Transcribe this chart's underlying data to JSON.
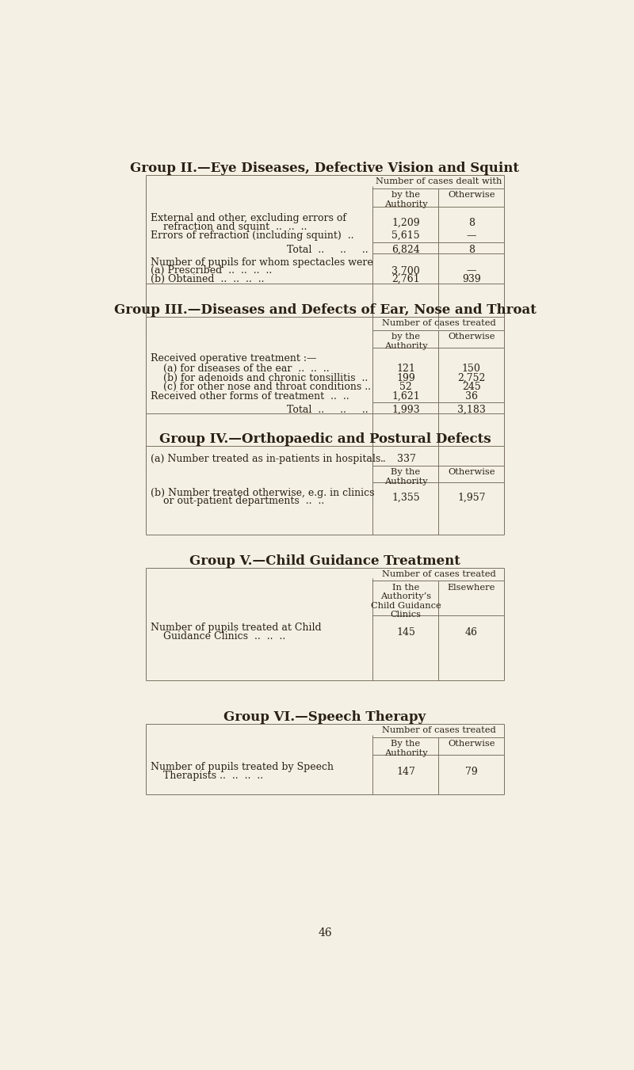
{
  "bg_color": "#f4f1e4",
  "text_color": "#2a2015",
  "line_color": "#7a7060",
  "group2": {
    "title": "Group II.—Eye Diseases, Defective Vision and Squint",
    "header_top": "Number of cases dealt with",
    "col1_header": "by the\nAuthority",
    "col2_header": "Otherwise",
    "row_ext1": "External and other, excluding errors of",
    "row_ext2": "    refraction and squint  ..  ..  ..",
    "row_ext_v1": "1,209",
    "row_ext_v2": "8",
    "row_err": "Errors of refraction (including squint)  ..",
    "row_err_v1": "5,615",
    "row_err_v2": "—",
    "total_v1": "6,824",
    "total_v2": "8",
    "spec_header": "Number of pupils for whom spectacles were",
    "spec_a": "(a) Prescribed  ..  ..  ..  ..",
    "spec_a_v1": "3,700",
    "spec_a_v2": "—",
    "spec_b": "(b) Obtained  ..  ..  ..  ..",
    "spec_b_v1": "2,761",
    "spec_b_v2": "939"
  },
  "group3": {
    "title": "Group III.—Diseases and Defects of Ear, Nose and Throat",
    "header_top": "Number of cases treated",
    "col1_header": "by the\nAuthority",
    "col2_header": "Otherwise",
    "row_op": "Received operative treatment :—",
    "row_a": "    (a) for diseases of the ear  ..  ..  ..",
    "row_a_v1": "121",
    "row_a_v2": "150",
    "row_b": "    (b) for adenoids and chronic tonsillitis  ..",
    "row_b_v1": "199",
    "row_b_v2": "2,752",
    "row_c": "    (c) for other nose and throat conditions ..",
    "row_c_v1": "52",
    "row_c_v2": "245",
    "row_other": "Received other forms of treatment  ..  ..",
    "row_other_v1": "1,621",
    "row_other_v2": "36",
    "total_v1": "1,993",
    "total_v2": "3,183"
  },
  "group4": {
    "title": "Group IV.—Orthopaedic and Postural Defects",
    "row_a_label": "(a) Number treated as in-patients in hospitals",
    "row_a_dots": "..",
    "row_a_value": "337",
    "col1_header": "By the\nAuthority",
    "col2_header": "Otherwise",
    "row_b_line1": "(b) Number treated otherwise, e.g. in clinics",
    "row_b_line2": "    or out-patient departments  ..  ..",
    "row_b_v1": "1,355",
    "row_b_v2": "1,957"
  },
  "group5": {
    "title": "Group V.—Child Guidance Treatment",
    "header_top": "Number of cases treated",
    "col1_header": "In the\nAuthority’s\nChild Guidance\nClinics",
    "col2_header": "Elsewhere",
    "row_label1": "Number of pupils treated at Child",
    "row_label2": "    Guidance Clinics  ..  ..  ..",
    "row_v1": "145",
    "row_v2": "46"
  },
  "group6": {
    "title": "Group VI.—Speech Therapy",
    "header_top": "Number of cases treated",
    "col1_header": "By the\nAuthority",
    "col2_header": "Otherwise",
    "row_label1": "Number of pupils treated by Speech",
    "row_label2": "    Therapists ..  ..  ..  ..",
    "row_v1": "147",
    "row_v2": "79"
  },
  "page_number": "46"
}
